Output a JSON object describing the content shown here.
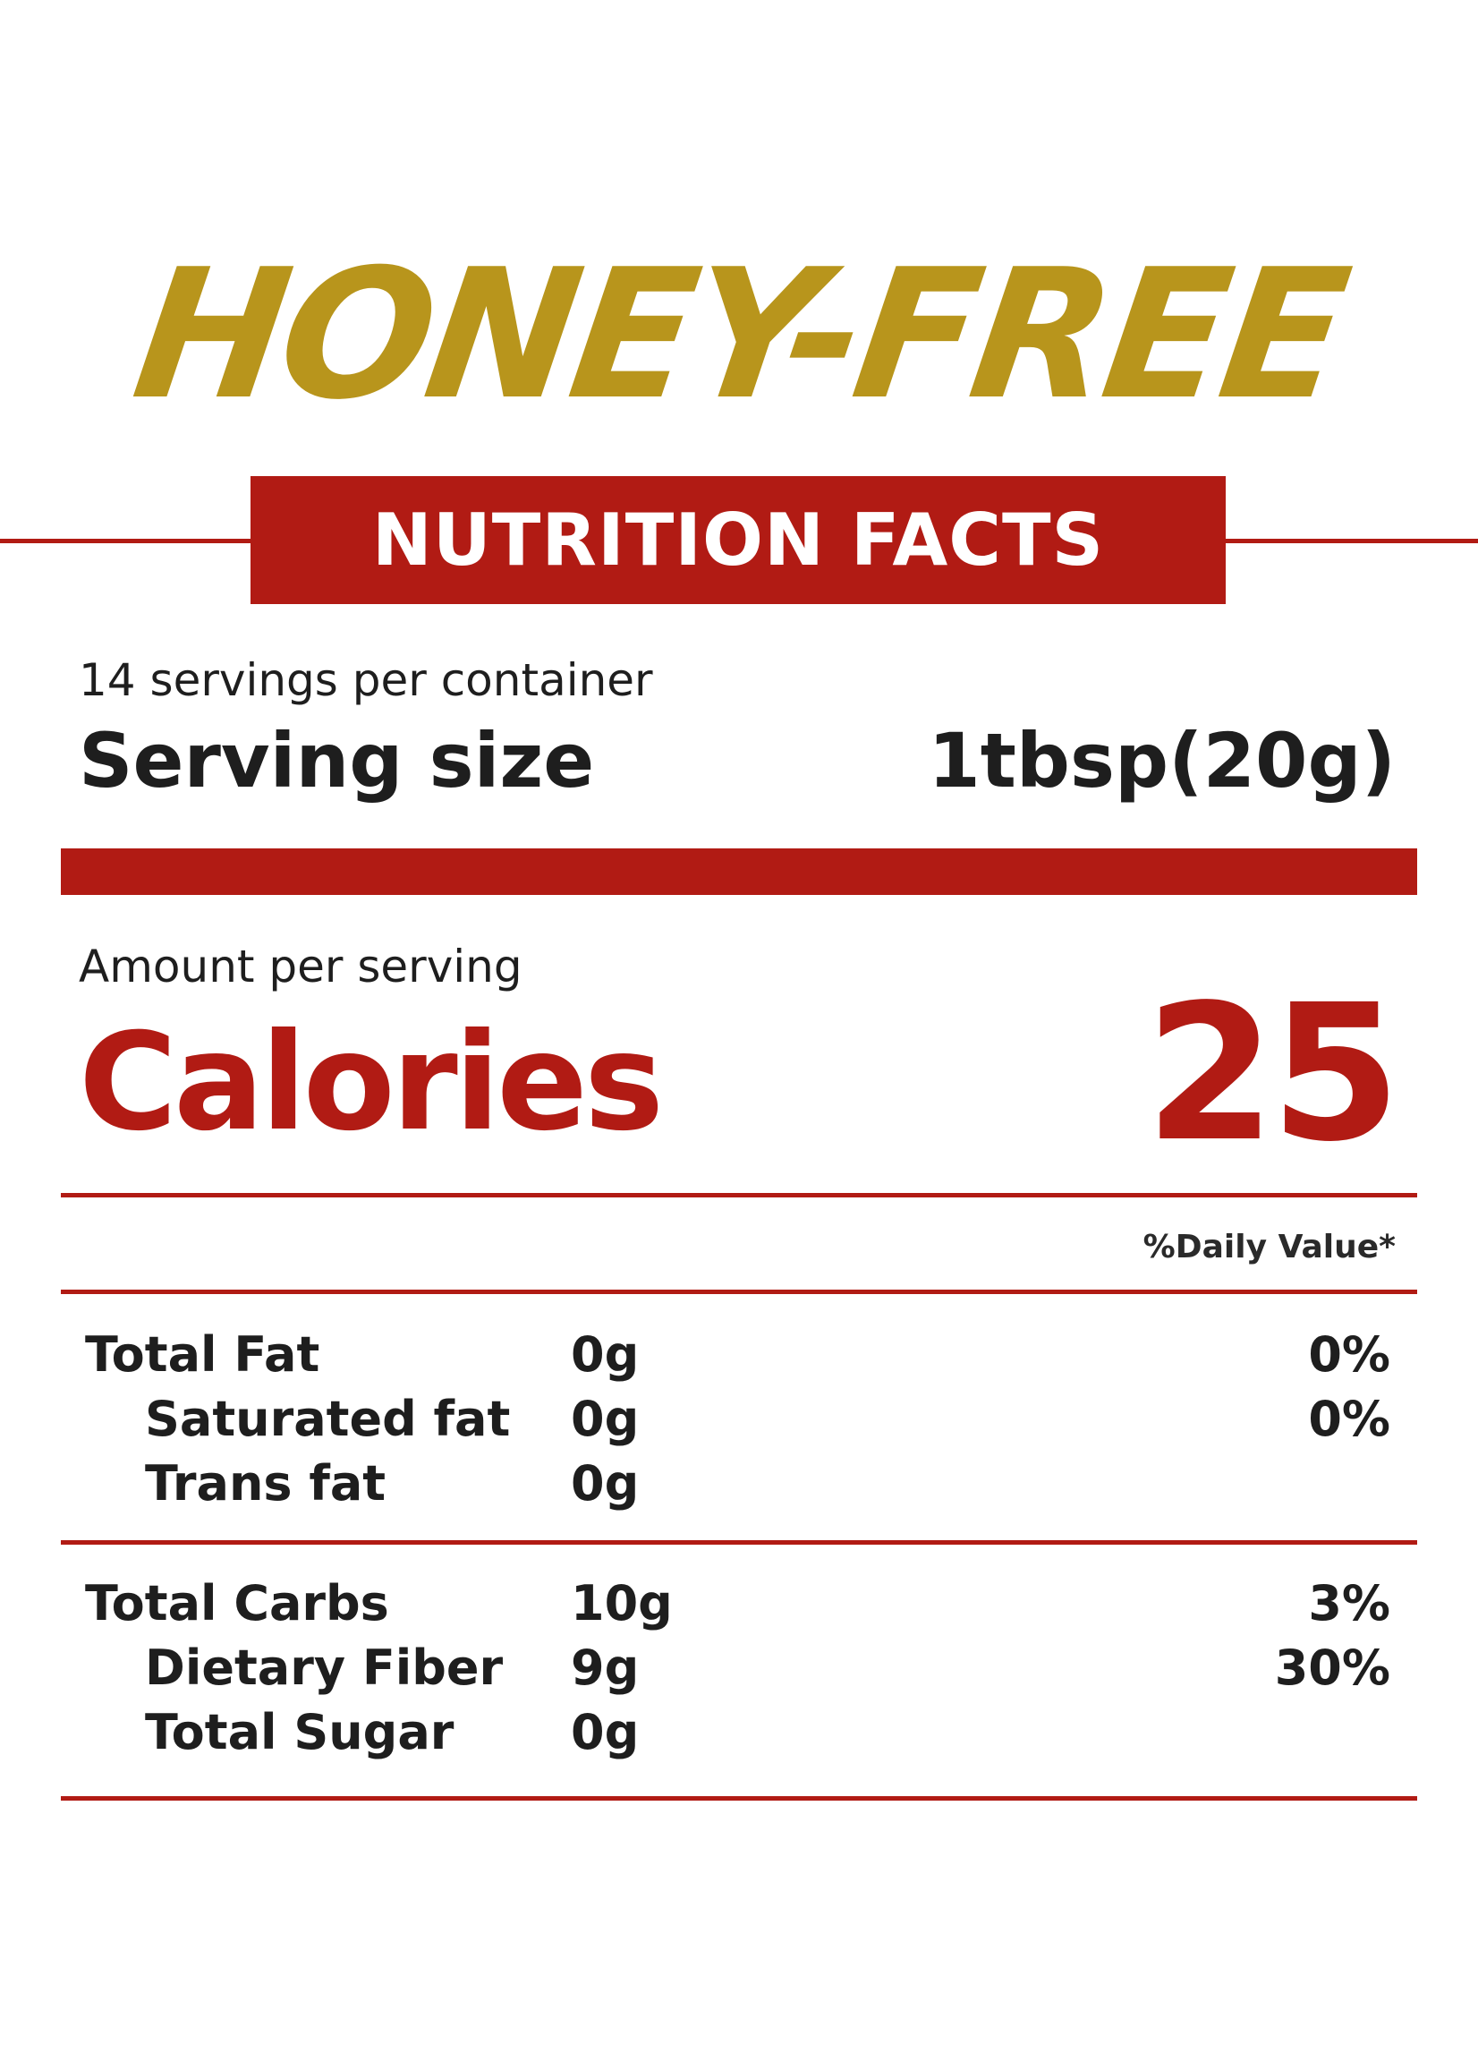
{
  "brand": {
    "name": "HONEY-FREE"
  },
  "banner": {
    "title": "NUTRITION FACTS"
  },
  "serving": {
    "servings_per_container": "14 servings per container",
    "size_label": "Serving size",
    "size_value": "1tbsp(20g)"
  },
  "calories": {
    "amount_label": "Amount per serving",
    "label": "Calories",
    "value": "25"
  },
  "daily_value_header": "%Daily Value*",
  "fat_section": {
    "rows": [
      {
        "name": "Total Fat",
        "amount": "0g",
        "pct": "0%"
      },
      {
        "name": "Saturated fat",
        "amount": "0g",
        "pct": "0%"
      },
      {
        "name": "Trans fat",
        "amount": "0g",
        "pct": ""
      }
    ]
  },
  "carb_section": {
    "rows": [
      {
        "name": "Total Carbs",
        "amount": "10g",
        "pct": "3%"
      },
      {
        "name": "Dietary Fiber",
        "amount": "9g",
        "pct": "30%"
      },
      {
        "name": "Total Sugar",
        "amount": "0g",
        "pct": ""
      }
    ]
  },
  "colors": {
    "brand_gold": "#b8951c",
    "accent_red": "#b11b14",
    "text_dark": "#1e1e1e",
    "background": "#ffffff"
  }
}
